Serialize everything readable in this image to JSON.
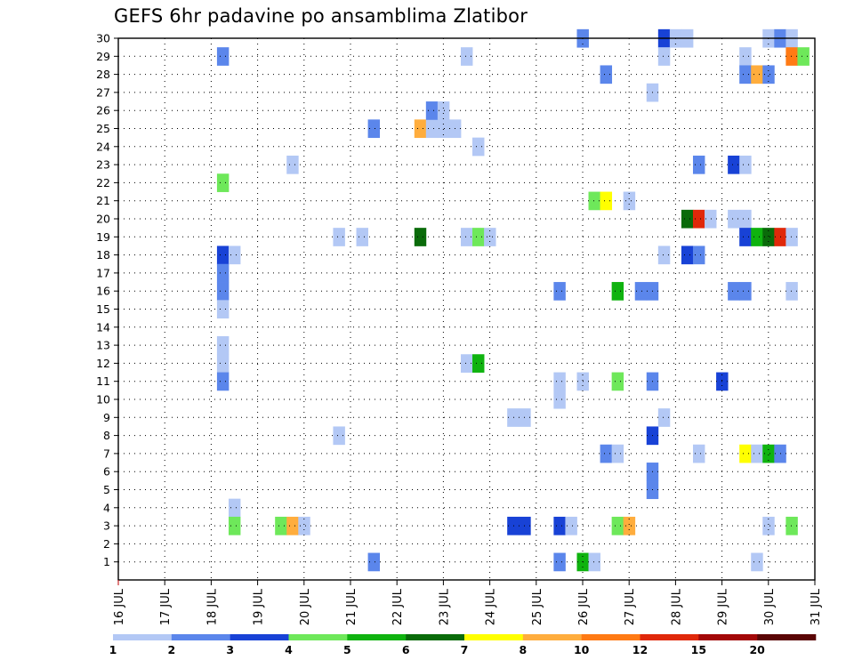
{
  "chart_data": {
    "type": "heatmap",
    "title": "GEFS 6hr padavine po ansamblima Zlatibor",
    "xlabel": "",
    "ylabel": "",
    "x_tick_labels": [
      "16 JUL",
      "17 JUL",
      "18 JUL",
      "19 JUL",
      "20 JUL",
      "21 JUL",
      "22 JUL",
      "23 JUL",
      "24 JUL",
      "25 JUL",
      "26 JUL",
      "27 JUL",
      "28 JUL",
      "29 JUL",
      "30 JUL",
      "31 JUL"
    ],
    "x_tick_values": [
      16,
      17,
      18,
      19,
      20,
      21,
      22,
      23,
      24,
      25,
      26,
      27,
      28,
      29,
      30,
      31
    ],
    "xlim": [
      16,
      31
    ],
    "ylim": [
      0,
      30
    ],
    "y_tick_values": [
      1,
      2,
      3,
      4,
      5,
      6,
      7,
      8,
      9,
      10,
      11,
      12,
      13,
      14,
      15,
      16,
      17,
      18,
      19,
      20,
      21,
      22,
      23,
      24,
      25,
      26,
      27,
      28,
      29,
      30
    ],
    "grid": true,
    "legend": {
      "placement": "bottom",
      "colors": [
        "#b3c8f5",
        "#5b86eb",
        "#1842d6",
        "#6ee85a",
        "#0fb30f",
        "#0a6b0a",
        "#ffff00",
        "#ffad3d",
        "#ff7a14",
        "#e0280a",
        "#a30808",
        "#5a0505"
      ],
      "labels": [
        "1",
        "2",
        "3",
        "4",
        "5",
        "6",
        "7",
        "8",
        "10",
        "12",
        "15",
        "20"
      ]
    },
    "cells": [
      {
        "t": 18.25,
        "m": 29,
        "c": 2
      },
      {
        "t": 18.25,
        "m": 22,
        "c": 4
      },
      {
        "t": 18.25,
        "m": 18,
        "c": 3
      },
      {
        "t": 18.5,
        "m": 18,
        "c": 1
      },
      {
        "t": 18.25,
        "m": 17,
        "c": 2
      },
      {
        "t": 18.25,
        "m": 16,
        "c": 2
      },
      {
        "t": 18.25,
        "m": 15,
        "c": 1
      },
      {
        "t": 18.25,
        "m": 13,
        "c": 1
      },
      {
        "t": 18.25,
        "m": 12,
        "c": 1
      },
      {
        "t": 18.25,
        "m": 11,
        "c": 2
      },
      {
        "t": 18.5,
        "m": 4,
        "c": 1
      },
      {
        "t": 18.5,
        "m": 3,
        "c": 4
      },
      {
        "t": 19.5,
        "m": 3,
        "c": 4
      },
      {
        "t": 19.75,
        "m": 3,
        "c": 8
      },
      {
        "t": 20.0,
        "m": 3,
        "c": 1
      },
      {
        "t": 19.75,
        "m": 23,
        "c": 1
      },
      {
        "t": 20.75,
        "m": 19,
        "c": 1
      },
      {
        "t": 21.25,
        "m": 19,
        "c": 1
      },
      {
        "t": 20.75,
        "m": 8,
        "c": 1
      },
      {
        "t": 21.5,
        "m": 25,
        "c": 2
      },
      {
        "t": 21.5,
        "m": 1,
        "c": 2
      },
      {
        "t": 22.5,
        "m": 25,
        "c": 8
      },
      {
        "t": 22.75,
        "m": 25,
        "c": 1
      },
      {
        "t": 23.0,
        "m": 25,
        "c": 1
      },
      {
        "t": 23.25,
        "m": 25,
        "c": 1
      },
      {
        "t": 22.75,
        "m": 26,
        "c": 2
      },
      {
        "t": 23.0,
        "m": 26,
        "c": 1
      },
      {
        "t": 22.5,
        "m": 19,
        "c": 6
      },
      {
        "t": 23.5,
        "m": 29,
        "c": 1
      },
      {
        "t": 23.75,
        "m": 24,
        "c": 1
      },
      {
        "t": 23.5,
        "m": 19,
        "c": 1
      },
      {
        "t": 23.75,
        "m": 19,
        "c": 4
      },
      {
        "t": 24.0,
        "m": 19,
        "c": 1
      },
      {
        "t": 23.5,
        "m": 12,
        "c": 1
      },
      {
        "t": 23.75,
        "m": 12,
        "c": 5
      },
      {
        "t": 24.5,
        "m": 9,
        "c": 1
      },
      {
        "t": 24.75,
        "m": 9,
        "c": 1
      },
      {
        "t": 24.5,
        "m": 3,
        "c": 3
      },
      {
        "t": 24.75,
        "m": 3,
        "c": 3
      },
      {
        "t": 25.5,
        "m": 16,
        "c": 2
      },
      {
        "t": 25.5,
        "m": 11,
        "c": 1
      },
      {
        "t": 25.5,
        "m": 10,
        "c": 1
      },
      {
        "t": 25.5,
        "m": 3,
        "c": 3
      },
      {
        "t": 25.75,
        "m": 3,
        "c": 1
      },
      {
        "t": 25.5,
        "m": 1,
        "c": 2
      },
      {
        "t": 26.0,
        "m": 30,
        "c": 2
      },
      {
        "t": 26.0,
        "m": 11,
        "c": 1
      },
      {
        "t": 26.0,
        "m": 1,
        "c": 5
      },
      {
        "t": 26.25,
        "m": 1,
        "c": 1
      },
      {
        "t": 26.25,
        "m": 21,
        "c": 4
      },
      {
        "t": 26.5,
        "m": 21,
        "c": 7
      },
      {
        "t": 26.5,
        "m": 28,
        "c": 2
      },
      {
        "t": 26.5,
        "m": 7,
        "c": 2
      },
      {
        "t": 26.75,
        "m": 7,
        "c": 1
      },
      {
        "t": 26.75,
        "m": 16,
        "c": 5
      },
      {
        "t": 26.75,
        "m": 11,
        "c": 4
      },
      {
        "t": 26.75,
        "m": 3,
        "c": 4
      },
      {
        "t": 27.0,
        "m": 3,
        "c": 8
      },
      {
        "t": 27.0,
        "m": 21,
        "c": 1
      },
      {
        "t": 27.25,
        "m": 16,
        "c": 2
      },
      {
        "t": 27.5,
        "m": 16,
        "c": 2
      },
      {
        "t": 27.5,
        "m": 27,
        "c": 1
      },
      {
        "t": 27.5,
        "m": 11,
        "c": 2
      },
      {
        "t": 27.5,
        "m": 8,
        "c": 3
      },
      {
        "t": 27.5,
        "m": 6,
        "c": 2
      },
      {
        "t": 27.5,
        "m": 5,
        "c": 2
      },
      {
        "t": 27.75,
        "m": 30,
        "c": 3
      },
      {
        "t": 28.0,
        "m": 30,
        "c": 1
      },
      {
        "t": 28.25,
        "m": 30,
        "c": 1
      },
      {
        "t": 27.75,
        "m": 29,
        "c": 1
      },
      {
        "t": 27.75,
        "m": 18,
        "c": 1
      },
      {
        "t": 27.75,
        "m": 9,
        "c": 1
      },
      {
        "t": 28.25,
        "m": 20,
        "c": 6
      },
      {
        "t": 28.5,
        "m": 20,
        "c": 10
      },
      {
        "t": 28.75,
        "m": 20,
        "c": 1
      },
      {
        "t": 28.25,
        "m": 18,
        "c": 3
      },
      {
        "t": 28.5,
        "m": 18,
        "c": 2
      },
      {
        "t": 28.5,
        "m": 23,
        "c": 2
      },
      {
        "t": 28.5,
        "m": 7,
        "c": 1
      },
      {
        "t": 29.0,
        "m": 11,
        "c": 3
      },
      {
        "t": 29.25,
        "m": 23,
        "c": 3
      },
      {
        "t": 29.5,
        "m": 23,
        "c": 1
      },
      {
        "t": 29.25,
        "m": 20,
        "c": 1
      },
      {
        "t": 29.5,
        "m": 20,
        "c": 1
      },
      {
        "t": 29.5,
        "m": 19,
        "c": 3
      },
      {
        "t": 29.75,
        "m": 19,
        "c": 5
      },
      {
        "t": 30.0,
        "m": 19,
        "c": 6
      },
      {
        "t": 30.25,
        "m": 19,
        "c": 10
      },
      {
        "t": 30.5,
        "m": 19,
        "c": 1
      },
      {
        "t": 29.25,
        "m": 16,
        "c": 2
      },
      {
        "t": 29.5,
        "m": 16,
        "c": 2
      },
      {
        "t": 29.5,
        "m": 29,
        "c": 1
      },
      {
        "t": 29.5,
        "m": 28,
        "c": 2
      },
      {
        "t": 29.75,
        "m": 28,
        "c": 8
      },
      {
        "t": 30.0,
        "m": 28,
        "c": 2
      },
      {
        "t": 29.5,
        "m": 7,
        "c": 7
      },
      {
        "t": 29.75,
        "m": 7,
        "c": 1
      },
      {
        "t": 30.0,
        "m": 7,
        "c": 5
      },
      {
        "t": 30.25,
        "m": 7,
        "c": 2
      },
      {
        "t": 29.75,
        "m": 1,
        "c": 1
      },
      {
        "t": 30.0,
        "m": 30,
        "c": 1
      },
      {
        "t": 30.25,
        "m": 30,
        "c": 2
      },
      {
        "t": 30.5,
        "m": 30,
        "c": 1
      },
      {
        "t": 30.0,
        "m": 3,
        "c": 1
      },
      {
        "t": 30.5,
        "m": 29,
        "c": 9
      },
      {
        "t": 30.75,
        "m": 29,
        "c": 4
      },
      {
        "t": 30.5,
        "m": 16,
        "c": 1
      },
      {
        "t": 30.5,
        "m": 3,
        "c": 4
      }
    ]
  }
}
